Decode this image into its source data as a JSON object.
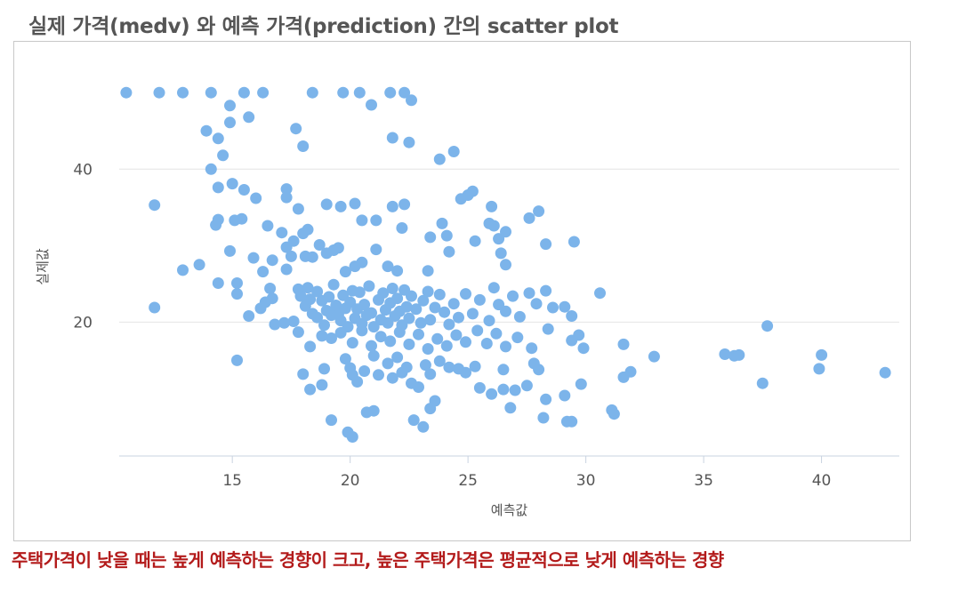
{
  "chart_data": {
    "type": "scatter",
    "title": "실제 가격(medv) 와 예측 가격(prediction) 간의 scatter plot",
    "xlabel": "예측값",
    "ylabel": "실제값",
    "xlim": [
      10.2,
      43.3
    ],
    "ylim": [
      2.5,
      52
    ],
    "x_ticks": [
      15,
      20,
      25,
      30,
      35,
      40
    ],
    "y_ticks": [
      20,
      40
    ],
    "grid": "horizontal",
    "point_color": "#7cb4ea",
    "points": [
      [
        10.5,
        50
      ],
      [
        11.9,
        50
      ],
      [
        12.9,
        50
      ],
      [
        14.1,
        50
      ],
      [
        15.5,
        50
      ],
      [
        16.3,
        50
      ],
      [
        18.4,
        50
      ],
      [
        19.7,
        50
      ],
      [
        20.4,
        50
      ],
      [
        21.7,
        50
      ],
      [
        22.3,
        50
      ],
      [
        22.6,
        49
      ],
      [
        14.9,
        48.3
      ],
      [
        15.7,
        46.8
      ],
      [
        20.9,
        48.4
      ],
      [
        13.9,
        45
      ],
      [
        14.4,
        44
      ],
      [
        14.6,
        41.8
      ],
      [
        14.9,
        46.1
      ],
      [
        17.7,
        45.3
      ],
      [
        18.0,
        43
      ],
      [
        21.8,
        44.1
      ],
      [
        22.5,
        43.5
      ],
      [
        24.4,
        42.3
      ],
      [
        23.8,
        41.3
      ],
      [
        14.1,
        40
      ],
      [
        11.7,
        35.3
      ],
      [
        14.4,
        37.6
      ],
      [
        15.0,
        38.1
      ],
      [
        15.5,
        37.3
      ],
      [
        16.0,
        36.2
      ],
      [
        17.3,
        37.4
      ],
      [
        17.3,
        36.3
      ],
      [
        17.8,
        34.8
      ],
      [
        19.0,
        35.4
      ],
      [
        19.6,
        35.1
      ],
      [
        20.2,
        35.5
      ],
      [
        21.8,
        35.1
      ],
      [
        22.3,
        35.4
      ],
      [
        24.7,
        36.1
      ],
      [
        25.0,
        36.6
      ],
      [
        25.2,
        37.1
      ],
      [
        26.0,
        35.1
      ],
      [
        14.3,
        32.7
      ],
      [
        14.4,
        33.4
      ],
      [
        15.1,
        33.3
      ],
      [
        15.4,
        33.5
      ],
      [
        16.5,
        32.6
      ],
      [
        17.1,
        31.7
      ],
      [
        17.6,
        30.6
      ],
      [
        18.2,
        32.1
      ],
      [
        18.0,
        31.6
      ],
      [
        20.5,
        33.3
      ],
      [
        21.1,
        33.3
      ],
      [
        22.2,
        32.3
      ],
      [
        23.4,
        31.1
      ],
      [
        23.9,
        32.9
      ],
      [
        24.1,
        31.3
      ],
      [
        25.9,
        32.9
      ],
      [
        26.1,
        32.6
      ],
      [
        26.3,
        30.9
      ],
      [
        26.6,
        31.8
      ],
      [
        27.6,
        33.6
      ],
      [
        28.0,
        34.5
      ],
      [
        12.9,
        26.8
      ],
      [
        13.6,
        27.5
      ],
      [
        14.9,
        29.3
      ],
      [
        15.9,
        28.4
      ],
      [
        16.3,
        26.6
      ],
      [
        16.7,
        28.1
      ],
      [
        17.3,
        29.8
      ],
      [
        17.5,
        28.6
      ],
      [
        17.3,
        26.9
      ],
      [
        18.1,
        28.6
      ],
      [
        18.4,
        28.5
      ],
      [
        18.7,
        30.1
      ],
      [
        19.0,
        29
      ],
      [
        19.3,
        29.4
      ],
      [
        19.5,
        29.7
      ],
      [
        19.8,
        26.6
      ],
      [
        20.2,
        27.3
      ],
      [
        20.5,
        27.8
      ],
      [
        21.1,
        29.5
      ],
      [
        21.6,
        27.3
      ],
      [
        22.0,
        26.7
      ],
      [
        23.3,
        26.7
      ],
      [
        24.2,
        29.2
      ],
      [
        25.3,
        30.6
      ],
      [
        26.4,
        29
      ],
      [
        26.6,
        27.5
      ],
      [
        28.3,
        30.2
      ],
      [
        29.5,
        30.5
      ],
      [
        11.7,
        21.9
      ],
      [
        14.4,
        25.1
      ],
      [
        15.2,
        25.1
      ],
      [
        15.2,
        23.7
      ],
      [
        15.7,
        20.8
      ],
      [
        16.2,
        21.8
      ],
      [
        16.4,
        22.6
      ],
      [
        16.6,
        24.4
      ],
      [
        16.7,
        23.1
      ],
      [
        16.8,
        19.7
      ],
      [
        17.2,
        19.9
      ],
      [
        17.6,
        20.1
      ],
      [
        17.8,
        24.3
      ],
      [
        17.9,
        23.4
      ],
      [
        18.1,
        22.1
      ],
      [
        18.2,
        24.5
      ],
      [
        18.3,
        23
      ],
      [
        18.4,
        21.1
      ],
      [
        18.6,
        20.6
      ],
      [
        18.6,
        24
      ],
      [
        18.8,
        22.8
      ],
      [
        18.9,
        19.6
      ],
      [
        19.0,
        21.5
      ],
      [
        19.1,
        23.3
      ],
      [
        19.2,
        20.9
      ],
      [
        19.3,
        24.9
      ],
      [
        19.4,
        22.2
      ],
      [
        19.5,
        21
      ],
      [
        19.6,
        20.2
      ],
      [
        19.7,
        23.5
      ],
      [
        19.8,
        21.8
      ],
      [
        19.9,
        19.4
      ],
      [
        20.0,
        22.6
      ],
      [
        20.1,
        24.1
      ],
      [
        20.2,
        20.5
      ],
      [
        20.3,
        21.7
      ],
      [
        20.4,
        23.9
      ],
      [
        20.5,
        19.8
      ],
      [
        20.6,
        22.3
      ],
      [
        20.7,
        20.9
      ],
      [
        20.8,
        24.7
      ],
      [
        20.9,
        21.2
      ],
      [
        21.0,
        19.4
      ],
      [
        21.2,
        22.9
      ],
      [
        21.3,
        20.3
      ],
      [
        21.4,
        23.8
      ],
      [
        21.5,
        21.6
      ],
      [
        21.6,
        19.9
      ],
      [
        21.7,
        22.5
      ],
      [
        21.8,
        24.4
      ],
      [
        21.9,
        20.8
      ],
      [
        22.0,
        23.1
      ],
      [
        22.1,
        21.4
      ],
      [
        22.2,
        19.6
      ],
      [
        22.3,
        24.2
      ],
      [
        22.4,
        22.0
      ],
      [
        22.5,
        20.5
      ],
      [
        22.6,
        23.4
      ],
      [
        22.8,
        21.7
      ],
      [
        23.0,
        19.9
      ],
      [
        23.1,
        22.8
      ],
      [
        23.3,
        24.0
      ],
      [
        23.4,
        20.3
      ],
      [
        23.6,
        21.9
      ],
      [
        23.8,
        23.6
      ],
      [
        24.0,
        21.3
      ],
      [
        24.2,
        19.7
      ],
      [
        24.4,
        22.4
      ],
      [
        24.6,
        20.6
      ],
      [
        24.9,
        23.7
      ],
      [
        25.2,
        21.1
      ],
      [
        25.5,
        22.9
      ],
      [
        25.9,
        20.2
      ],
      [
        26.1,
        24.5
      ],
      [
        26.3,
        22.3
      ],
      [
        26.6,
        21.4
      ],
      [
        26.9,
        23.4
      ],
      [
        27.2,
        20.7
      ],
      [
        27.6,
        23.8
      ],
      [
        27.9,
        22.4
      ],
      [
        28.3,
        24.1
      ],
      [
        28.6,
        21.9
      ],
      [
        29.1,
        22.0
      ],
      [
        29.4,
        20.8
      ],
      [
        30.6,
        23.8
      ],
      [
        17.8,
        18.7
      ],
      [
        18.3,
        16.8
      ],
      [
        18.8,
        18.2
      ],
      [
        19.2,
        17.9
      ],
      [
        19.6,
        18.6
      ],
      [
        20.1,
        17.3
      ],
      [
        20.5,
        18.9
      ],
      [
        20.9,
        16.9
      ],
      [
        21.3,
        18.1
      ],
      [
        21.7,
        17.5
      ],
      [
        22.1,
        18.7
      ],
      [
        22.5,
        17.1
      ],
      [
        22.9,
        18.4
      ],
      [
        23.3,
        16.5
      ],
      [
        23.7,
        17.8
      ],
      [
        24.1,
        16.9
      ],
      [
        24.5,
        18.3
      ],
      [
        24.9,
        17.4
      ],
      [
        25.4,
        18.9
      ],
      [
        25.8,
        17.2
      ],
      [
        26.2,
        18.5
      ],
      [
        26.6,
        16.8
      ],
      [
        27.1,
        18.0
      ],
      [
        27.7,
        16.6
      ],
      [
        28.4,
        19.1
      ],
      [
        29.4,
        17.6
      ],
      [
        29.7,
        18.3
      ],
      [
        29.9,
        16.6
      ],
      [
        31.6,
        17.1
      ],
      [
        37.7,
        19.5
      ],
      [
        15.2,
        15.0
      ],
      [
        18.0,
        13.2
      ],
      [
        18.3,
        11.2
      ],
      [
        18.8,
        11.8
      ],
      [
        18.9,
        13.9
      ],
      [
        19.8,
        15.2
      ],
      [
        20.0,
        14.0
      ],
      [
        20.1,
        13.1
      ],
      [
        20.3,
        12.2
      ],
      [
        20.6,
        13.6
      ],
      [
        21.0,
        15.6
      ],
      [
        21.2,
        13.1
      ],
      [
        21.6,
        14.6
      ],
      [
        21.8,
        12.7
      ],
      [
        22.0,
        15.4
      ],
      [
        22.2,
        13.4
      ],
      [
        22.4,
        14.1
      ],
      [
        22.6,
        12.0
      ],
      [
        22.9,
        11.5
      ],
      [
        23.2,
        14.4
      ],
      [
        23.4,
        13.2
      ],
      [
        23.8,
        14.9
      ],
      [
        24.2,
        14.1
      ],
      [
        24.6,
        13.9
      ],
      [
        24.9,
        13.4
      ],
      [
        25.3,
        14.2
      ],
      [
        25.5,
        11.4
      ],
      [
        26.0,
        10.6
      ],
      [
        26.5,
        13.8
      ],
      [
        26.5,
        11.2
      ],
      [
        27.0,
        11.1
      ],
      [
        27.5,
        11.7
      ],
      [
        27.8,
        14.6
      ],
      [
        28.0,
        13.8
      ],
      [
        28.3,
        9.9
      ],
      [
        29.1,
        10.4
      ],
      [
        29.8,
        11.9
      ],
      [
        31.6,
        12.8
      ],
      [
        31.9,
        13.5
      ],
      [
        32.9,
        15.5
      ],
      [
        35.9,
        15.8
      ],
      [
        36.3,
        15.6
      ],
      [
        36.5,
        15.7
      ],
      [
        37.5,
        12.0
      ],
      [
        39.9,
        13.9
      ],
      [
        40.0,
        15.7
      ],
      [
        42.7,
        13.4
      ],
      [
        19.2,
        7.2
      ],
      [
        19.9,
        5.6
      ],
      [
        20.1,
        5.0
      ],
      [
        20.7,
        8.2
      ],
      [
        21.0,
        8.4
      ],
      [
        22.7,
        7.2
      ],
      [
        23.1,
        6.3
      ],
      [
        23.4,
        8.7
      ],
      [
        23.6,
        9.7
      ],
      [
        26.8,
        8.8
      ],
      [
        28.2,
        7.5
      ],
      [
        29.2,
        7.0
      ],
      [
        29.4,
        7.0
      ],
      [
        31.1,
        8.5
      ],
      [
        31.2,
        8.0
      ]
    ]
  },
  "caption": "주택가격이 낮을 때는 높게 예측하는 경향이 크고, 높은 주택가격은 평균적으로 낮게 예측하는 경향"
}
